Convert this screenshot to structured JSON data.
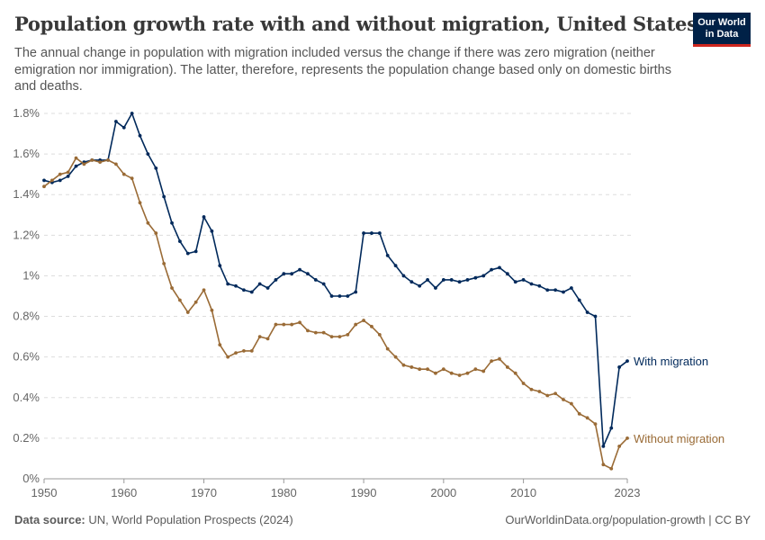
{
  "header": {
    "title": "Population growth rate with and without migration, United States",
    "subtitle": "The annual change in population with migration included versus the change if there was zero migration (neither emigration nor immigration). The latter, therefore, represents the population change based only on domestic births and deaths.",
    "logo_line1": "Our World",
    "logo_line2": "in Data"
  },
  "footer": {
    "source_label": "Data source:",
    "source": "UN, World Population Prospects (2024)",
    "link": "OurWorldinData.org/population-growth | CC BY"
  },
  "chart_data": {
    "type": "line",
    "title": "Population growth rate with and without migration, United States",
    "xlim": [
      1950,
      2023
    ],
    "ylim": [
      0,
      1.8
    ],
    "x_ticks": [
      "1950",
      "1960",
      "1970",
      "1980",
      "1990",
      "2000",
      "2010",
      "2023"
    ],
    "y_ticks": [
      "0%",
      "0.2%",
      "0.4%",
      "0.6%",
      "0.8%",
      "1%",
      "1.2%",
      "1.4%",
      "1.6%",
      "1.8%"
    ],
    "grid": "horizontal dashed",
    "legend": "inline-right",
    "x_start": 1950,
    "series": [
      {
        "name": "With migration",
        "color": "#00295b",
        "values": [
          1.47,
          1.46,
          1.47,
          1.49,
          1.54,
          1.56,
          1.57,
          1.57,
          1.57,
          1.76,
          1.73,
          1.8,
          1.69,
          1.6,
          1.53,
          1.39,
          1.26,
          1.17,
          1.11,
          1.12,
          1.29,
          1.22,
          1.05,
          0.96,
          0.95,
          0.93,
          0.92,
          0.96,
          0.94,
          0.98,
          1.01,
          1.01,
          1.03,
          1.01,
          0.98,
          0.96,
          0.9,
          0.9,
          0.9,
          0.92,
          1.21,
          1.21,
          1.21,
          1.1,
          1.05,
          1.0,
          0.97,
          0.95,
          0.98,
          0.94,
          0.98,
          0.98,
          0.97,
          0.98,
          0.99,
          1.0,
          1.03,
          1.04,
          1.01,
          0.97,
          0.98,
          0.96,
          0.95,
          0.93,
          0.93,
          0.92,
          0.94,
          0.88,
          0.82,
          0.8,
          0.16,
          0.25,
          0.55,
          0.58
        ]
      },
      {
        "name": "Without migration",
        "color": "#9a6b36",
        "values": [
          1.44,
          1.47,
          1.5,
          1.51,
          1.58,
          1.55,
          1.57,
          1.56,
          1.57,
          1.55,
          1.5,
          1.48,
          1.36,
          1.26,
          1.21,
          1.06,
          0.94,
          0.88,
          0.82,
          0.87,
          0.93,
          0.83,
          0.66,
          0.6,
          0.62,
          0.63,
          0.63,
          0.7,
          0.69,
          0.76,
          0.76,
          0.76,
          0.77,
          0.73,
          0.72,
          0.72,
          0.7,
          0.7,
          0.71,
          0.76,
          0.78,
          0.75,
          0.71,
          0.64,
          0.6,
          0.56,
          0.55,
          0.54,
          0.54,
          0.52,
          0.54,
          0.52,
          0.51,
          0.52,
          0.54,
          0.53,
          0.58,
          0.59,
          0.55,
          0.52,
          0.47,
          0.44,
          0.43,
          0.41,
          0.42,
          0.39,
          0.37,
          0.32,
          0.3,
          0.27,
          0.07,
          0.05,
          0.16,
          0.2
        ]
      }
    ]
  }
}
